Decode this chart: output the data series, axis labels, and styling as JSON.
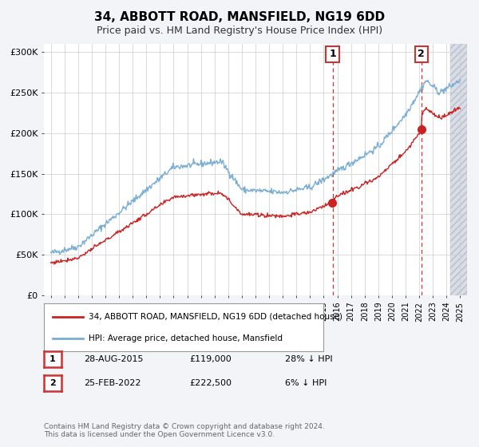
{
  "title": "34, ABBOTT ROAD, MANSFIELD, NG19 6DD",
  "subtitle": "Price paid vs. HM Land Registry's House Price Index (HPI)",
  "legend_entry1": "34, ABBOTT ROAD, MANSFIELD, NG19 6DD (detached house)",
  "legend_entry2": "HPI: Average price, detached house, Mansfield",
  "annotation1_label": "1",
  "annotation1_date": "28-AUG-2015",
  "annotation1_price": "£119,000",
  "annotation1_hpi": "28% ↓ HPI",
  "annotation1_year": 2015.65,
  "annotation2_label": "2",
  "annotation2_date": "25-FEB-2022",
  "annotation2_price": "£222,500",
  "annotation2_hpi": "6% ↓ HPI",
  "annotation2_year": 2022.15,
  "footer": "Contains HM Land Registry data © Crown copyright and database right 2024.\nThis data is licensed under the Open Government Licence v3.0.",
  "ylim": [
    0,
    310000
  ],
  "xlim_start": 1994.5,
  "xlim_end": 2025.5,
  "hpi_color": "#7aaed4",
  "price_color": "#cc2222",
  "bg_color": "#f2f4f8",
  "plot_bg": "#ffffff",
  "grid_color": "#cccccc",
  "vline_color": "#cc3333",
  "hatch_color": "#d8dde8"
}
